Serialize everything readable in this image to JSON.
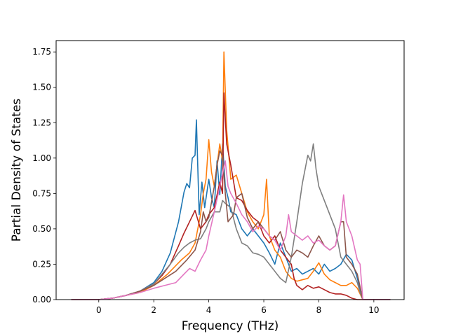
{
  "chart_data": {
    "type": "line",
    "title": "",
    "xlabel": "Frequency (THz)",
    "ylabel": "Partial Density of States",
    "xlim": [
      -1.55,
      11.1
    ],
    "ylim": [
      0,
      1.83
    ],
    "xticks": [
      0,
      2,
      4,
      6,
      8,
      10
    ],
    "yticks": [
      0.0,
      0.25,
      0.5,
      0.75,
      1.0,
      1.25,
      1.5,
      1.75
    ],
    "grid": false,
    "legend": "none",
    "series": [
      {
        "color": "#1f77b4",
        "points": [
          [
            -1.0,
            0
          ],
          [
            0,
            0
          ],
          [
            0.5,
            0.01
          ],
          [
            1.0,
            0.03
          ],
          [
            1.5,
            0.06
          ],
          [
            2.0,
            0.12
          ],
          [
            2.3,
            0.2
          ],
          [
            2.6,
            0.33
          ],
          [
            2.9,
            0.55
          ],
          [
            3.1,
            0.76
          ],
          [
            3.2,
            0.82
          ],
          [
            3.3,
            0.79
          ],
          [
            3.4,
            1.0
          ],
          [
            3.5,
            1.02
          ],
          [
            3.55,
            1.27
          ],
          [
            3.65,
            0.6
          ],
          [
            3.75,
            0.83
          ],
          [
            3.85,
            0.65
          ],
          [
            4.0,
            0.85
          ],
          [
            4.1,
            0.72
          ],
          [
            4.2,
            0.65
          ],
          [
            4.3,
            0.98
          ],
          [
            4.4,
            0.74
          ],
          [
            4.5,
            1.1
          ],
          [
            4.6,
            0.8
          ],
          [
            4.7,
            0.72
          ],
          [
            4.8,
            0.62
          ],
          [
            5.0,
            0.6
          ],
          [
            5.2,
            0.5
          ],
          [
            5.4,
            0.45
          ],
          [
            5.6,
            0.5
          ],
          [
            5.8,
            0.45
          ],
          [
            6.0,
            0.4
          ],
          [
            6.2,
            0.33
          ],
          [
            6.4,
            0.25
          ],
          [
            6.6,
            0.4
          ],
          [
            6.8,
            0.3
          ],
          [
            7.0,
            0.2
          ],
          [
            7.2,
            0.22
          ],
          [
            7.4,
            0.18
          ],
          [
            7.6,
            0.2
          ],
          [
            7.8,
            0.22
          ],
          [
            8.0,
            0.18
          ],
          [
            8.2,
            0.25
          ],
          [
            8.4,
            0.2
          ],
          [
            8.6,
            0.22
          ],
          [
            8.8,
            0.25
          ],
          [
            9.0,
            0.32
          ],
          [
            9.2,
            0.28
          ],
          [
            9.4,
            0.15
          ],
          [
            9.6,
            0.0
          ],
          [
            10.6,
            0.0
          ]
        ]
      },
      {
        "color": "#ff7f0e",
        "points": [
          [
            -1.0,
            0
          ],
          [
            0,
            0
          ],
          [
            0.5,
            0.01
          ],
          [
            1.0,
            0.03
          ],
          [
            1.5,
            0.05
          ],
          [
            2.0,
            0.1
          ],
          [
            2.5,
            0.18
          ],
          [
            3.0,
            0.28
          ],
          [
            3.3,
            0.33
          ],
          [
            3.5,
            0.4
          ],
          [
            3.7,
            0.6
          ],
          [
            3.8,
            0.75
          ],
          [
            3.9,
            0.85
          ],
          [
            4.0,
            1.13
          ],
          [
            4.1,
            0.9
          ],
          [
            4.2,
            0.8
          ],
          [
            4.3,
            0.95
          ],
          [
            4.4,
            1.1
          ],
          [
            4.5,
            0.98
          ],
          [
            4.55,
            1.75
          ],
          [
            4.65,
            1.2
          ],
          [
            4.8,
            0.85
          ],
          [
            5.0,
            0.88
          ],
          [
            5.2,
            0.75
          ],
          [
            5.4,
            0.62
          ],
          [
            5.6,
            0.55
          ],
          [
            5.8,
            0.5
          ],
          [
            6.0,
            0.6
          ],
          [
            6.1,
            0.85
          ],
          [
            6.2,
            0.45
          ],
          [
            6.4,
            0.35
          ],
          [
            6.6,
            0.3
          ],
          [
            6.8,
            0.2
          ],
          [
            7.0,
            0.15
          ],
          [
            7.2,
            0.13
          ],
          [
            7.4,
            0.14
          ],
          [
            7.6,
            0.15
          ],
          [
            7.8,
            0.2
          ],
          [
            8.0,
            0.26
          ],
          [
            8.2,
            0.18
          ],
          [
            8.4,
            0.14
          ],
          [
            8.6,
            0.12
          ],
          [
            8.8,
            0.1
          ],
          [
            9.0,
            0.1
          ],
          [
            9.2,
            0.12
          ],
          [
            9.4,
            0.08
          ],
          [
            9.6,
            0.0
          ],
          [
            10.6,
            0.0
          ]
        ]
      },
      {
        "color": "#b22222",
        "points": [
          [
            -1.0,
            0
          ],
          [
            0,
            0
          ],
          [
            0.5,
            0.01
          ],
          [
            1.0,
            0.03
          ],
          [
            1.5,
            0.06
          ],
          [
            2.0,
            0.11
          ],
          [
            2.3,
            0.17
          ],
          [
            2.6,
            0.25
          ],
          [
            2.9,
            0.38
          ],
          [
            3.1,
            0.47
          ],
          [
            3.3,
            0.55
          ],
          [
            3.5,
            0.63
          ],
          [
            3.7,
            0.5
          ],
          [
            3.9,
            0.55
          ],
          [
            4.0,
            0.6
          ],
          [
            4.2,
            0.65
          ],
          [
            4.4,
            0.83
          ],
          [
            4.5,
            0.75
          ],
          [
            4.55,
            1.46
          ],
          [
            4.65,
            1.1
          ],
          [
            4.8,
            0.95
          ],
          [
            5.0,
            0.72
          ],
          [
            5.2,
            0.7
          ],
          [
            5.4,
            0.63
          ],
          [
            5.6,
            0.58
          ],
          [
            5.8,
            0.55
          ],
          [
            6.0,
            0.45
          ],
          [
            6.2,
            0.4
          ],
          [
            6.4,
            0.45
          ],
          [
            6.6,
            0.35
          ],
          [
            6.8,
            0.3
          ],
          [
            7.0,
            0.25
          ],
          [
            7.1,
            0.15
          ],
          [
            7.2,
            0.1
          ],
          [
            7.4,
            0.07
          ],
          [
            7.6,
            0.1
          ],
          [
            7.8,
            0.08
          ],
          [
            8.0,
            0.09
          ],
          [
            8.2,
            0.07
          ],
          [
            8.4,
            0.05
          ],
          [
            8.6,
            0.04
          ],
          [
            8.8,
            0.04
          ],
          [
            9.0,
            0.03
          ],
          [
            9.2,
            0.01
          ],
          [
            9.4,
            0.0
          ],
          [
            10.6,
            0.0
          ]
        ]
      },
      {
        "color": "#7f7f7f",
        "points": [
          [
            -1.0,
            0
          ],
          [
            0,
            0
          ],
          [
            0.5,
            0.01
          ],
          [
            1.0,
            0.03
          ],
          [
            1.5,
            0.06
          ],
          [
            2.0,
            0.11
          ],
          [
            2.3,
            0.18
          ],
          [
            2.6,
            0.25
          ],
          [
            2.9,
            0.33
          ],
          [
            3.1,
            0.37
          ],
          [
            3.3,
            0.4
          ],
          [
            3.5,
            0.42
          ],
          [
            3.7,
            0.43
          ],
          [
            3.9,
            0.5
          ],
          [
            4.0,
            0.55
          ],
          [
            4.2,
            0.62
          ],
          [
            4.4,
            0.62
          ],
          [
            4.5,
            0.7
          ],
          [
            4.6,
            0.68
          ],
          [
            4.8,
            0.65
          ],
          [
            5.0,
            0.5
          ],
          [
            5.2,
            0.4
          ],
          [
            5.4,
            0.38
          ],
          [
            5.6,
            0.33
          ],
          [
            5.8,
            0.32
          ],
          [
            6.0,
            0.3
          ],
          [
            6.2,
            0.25
          ],
          [
            6.4,
            0.2
          ],
          [
            6.6,
            0.15
          ],
          [
            6.8,
            0.12
          ],
          [
            7.0,
            0.3
          ],
          [
            7.2,
            0.55
          ],
          [
            7.4,
            0.82
          ],
          [
            7.6,
            1.02
          ],
          [
            7.7,
            0.98
          ],
          [
            7.8,
            1.1
          ],
          [
            7.9,
            0.92
          ],
          [
            8.0,
            0.8
          ],
          [
            8.2,
            0.7
          ],
          [
            8.4,
            0.6
          ],
          [
            8.6,
            0.5
          ],
          [
            8.8,
            0.3
          ],
          [
            9.0,
            0.25
          ],
          [
            9.2,
            0.2
          ],
          [
            9.4,
            0.12
          ],
          [
            9.5,
            0.05
          ],
          [
            9.6,
            0.0
          ],
          [
            10.6,
            0.0
          ]
        ]
      },
      {
        "color": "#8c564b",
        "points": [
          [
            -1.0,
            0
          ],
          [
            0,
            0
          ],
          [
            0.5,
            0.01
          ],
          [
            1.0,
            0.03
          ],
          [
            1.5,
            0.06
          ],
          [
            2.0,
            0.1
          ],
          [
            2.4,
            0.15
          ],
          [
            2.8,
            0.2
          ],
          [
            3.2,
            0.28
          ],
          [
            3.5,
            0.35
          ],
          [
            3.7,
            0.48
          ],
          [
            3.8,
            0.62
          ],
          [
            3.9,
            0.55
          ],
          [
            4.0,
            0.58
          ],
          [
            4.2,
            0.8
          ],
          [
            4.3,
            0.95
          ],
          [
            4.4,
            1.05
          ],
          [
            4.5,
            1.02
          ],
          [
            4.6,
            0.75
          ],
          [
            4.7,
            0.55
          ],
          [
            4.9,
            0.6
          ],
          [
            5.0,
            0.72
          ],
          [
            5.2,
            0.75
          ],
          [
            5.4,
            0.58
          ],
          [
            5.6,
            0.5
          ],
          [
            5.8,
            0.55
          ],
          [
            6.0,
            0.5
          ],
          [
            6.2,
            0.45
          ],
          [
            6.4,
            0.42
          ],
          [
            6.6,
            0.48
          ],
          [
            6.8,
            0.35
          ],
          [
            7.0,
            0.3
          ],
          [
            7.2,
            0.35
          ],
          [
            7.4,
            0.33
          ],
          [
            7.6,
            0.3
          ],
          [
            7.8,
            0.38
          ],
          [
            8.0,
            0.45
          ],
          [
            8.2,
            0.38
          ],
          [
            8.4,
            0.35
          ],
          [
            8.6,
            0.38
          ],
          [
            8.8,
            0.55
          ],
          [
            8.9,
            0.55
          ],
          [
            9.0,
            0.3
          ],
          [
            9.2,
            0.25
          ],
          [
            9.4,
            0.18
          ],
          [
            9.6,
            0.0
          ],
          [
            10.6,
            0.0
          ]
        ]
      },
      {
        "color": "#e377c2",
        "points": [
          [
            -1.0,
            0
          ],
          [
            0,
            0
          ],
          [
            0.5,
            0.01
          ],
          [
            1.0,
            0.03
          ],
          [
            1.5,
            0.05
          ],
          [
            2.0,
            0.08
          ],
          [
            2.4,
            0.1
          ],
          [
            2.8,
            0.12
          ],
          [
            3.1,
            0.18
          ],
          [
            3.3,
            0.22
          ],
          [
            3.5,
            0.2
          ],
          [
            3.7,
            0.28
          ],
          [
            3.9,
            0.35
          ],
          [
            4.0,
            0.45
          ],
          [
            4.2,
            0.62
          ],
          [
            4.4,
            0.8
          ],
          [
            4.6,
            0.98
          ],
          [
            4.7,
            0.8
          ],
          [
            4.8,
            0.75
          ],
          [
            5.0,
            0.68
          ],
          [
            5.2,
            0.6
          ],
          [
            5.4,
            0.55
          ],
          [
            5.6,
            0.48
          ],
          [
            5.8,
            0.52
          ],
          [
            6.0,
            0.5
          ],
          [
            6.2,
            0.45
          ],
          [
            6.4,
            0.42
          ],
          [
            6.6,
            0.35
          ],
          [
            6.8,
            0.45
          ],
          [
            6.9,
            0.6
          ],
          [
            7.0,
            0.48
          ],
          [
            7.2,
            0.45
          ],
          [
            7.4,
            0.42
          ],
          [
            7.6,
            0.45
          ],
          [
            7.8,
            0.4
          ],
          [
            8.0,
            0.42
          ],
          [
            8.2,
            0.38
          ],
          [
            8.4,
            0.35
          ],
          [
            8.6,
            0.38
          ],
          [
            8.8,
            0.55
          ],
          [
            8.9,
            0.74
          ],
          [
            9.0,
            0.55
          ],
          [
            9.2,
            0.45
          ],
          [
            9.4,
            0.28
          ],
          [
            9.5,
            0.25
          ],
          [
            9.6,
            0.0
          ],
          [
            10.6,
            0.0
          ]
        ]
      }
    ]
  }
}
